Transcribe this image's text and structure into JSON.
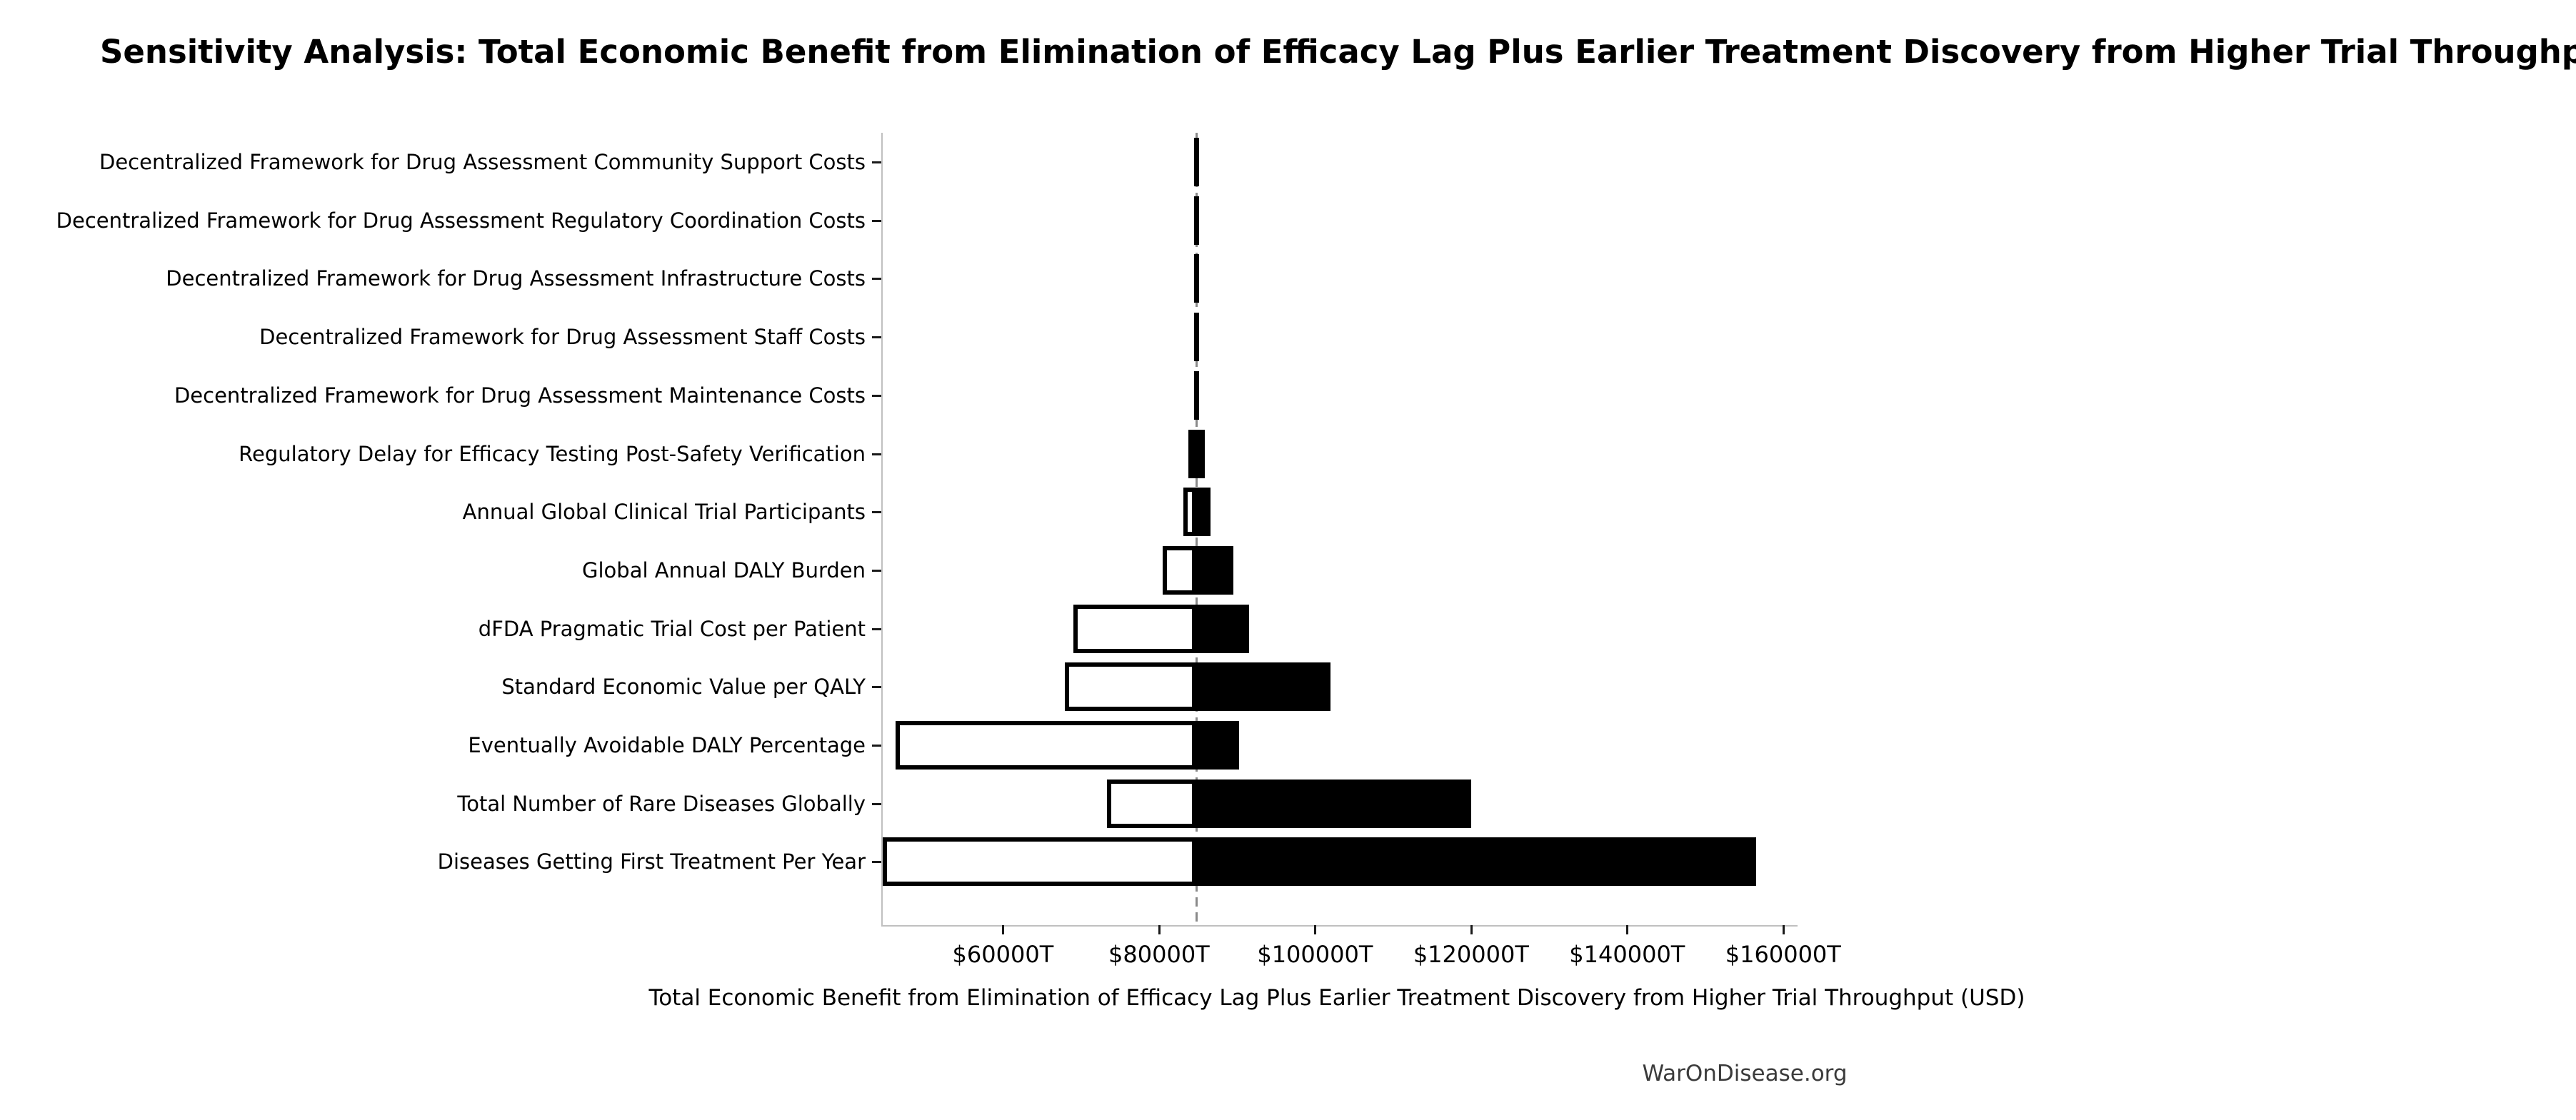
{
  "footer": "WarOnDisease.org",
  "chart_data": {
    "type": "bar",
    "orientation": "horizontal",
    "subtype": "tornado-sensitivity",
    "title": "Sensitivity Analysis: Total Economic Benefit from Elimination of Efficacy Lag Plus Earlier Treatment Discovery from Higher Trial Throughput",
    "xlabel": "Total Economic Benefit from Elimination of Efficacy Lag Plus Earlier Treatment Discovery from Higher Trial Throughput (USD)",
    "unit": "USD trillions (T)",
    "baseline": 84800,
    "xlim": [
      44400,
      161300
    ],
    "grid": false,
    "legend": "none",
    "x_ticks": [
      {
        "value": 60000,
        "label": "$60000T"
      },
      {
        "value": 80000,
        "label": "$80000T"
      },
      {
        "value": 100000,
        "label": "$100000T"
      },
      {
        "value": 120000,
        "label": "$120000T"
      },
      {
        "value": 140000,
        "label": "$140000T"
      },
      {
        "value": 160000,
        "label": "$160000T"
      }
    ],
    "categories": [
      "Decentralized Framework for Drug Assessment Community Support Costs",
      "Decentralized Framework for Drug Assessment Regulatory Coordination Costs",
      "Decentralized Framework for Drug Assessment Infrastructure Costs",
      "Decentralized Framework for Drug Assessment Staff Costs",
      "Decentralized Framework for Drug Assessment Maintenance Costs",
      "Regulatory Delay for Efficacy Testing Post-Safety Verification",
      "Annual Global Clinical Trial Participants",
      "Global Annual DALY Burden",
      "dFDA Pragmatic Trial Cost per Patient",
      "Standard Economic Value per QALY",
      "Eventually Avoidable DALY Percentage",
      "Total Number of Rare Diseases Globally",
      "Diseases Getting First Treatment Per Year"
    ],
    "series": [
      {
        "name": "low_estimate",
        "values": [
          84500,
          84500,
          84500,
          84500,
          84500,
          83800,
          83100,
          80500,
          69000,
          67900,
          46200,
          73300,
          44600
        ]
      },
      {
        "name": "high_estimate",
        "values": [
          85000,
          85000,
          85000,
          85000,
          85000,
          85900,
          86600,
          89500,
          91500,
          102000,
          90300,
          120000,
          156500
        ]
      }
    ],
    "colors": {
      "bar_low_fill": "#ffffff",
      "bar_high_fill": "#000000",
      "bar_edge": "#000000",
      "baseline_dash": "#8a8a8a",
      "spine": "#c0c0c0",
      "tick": "#1a1a1a",
      "text": "#000000",
      "footer_text": "#3b3b3b",
      "background": "#ffffff"
    }
  }
}
